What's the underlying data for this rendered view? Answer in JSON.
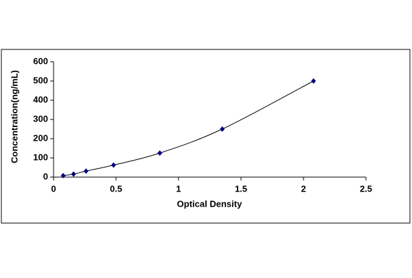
{
  "chart_data": {
    "type": "scatter",
    "x_label": "Optical Density",
    "y_label": "Concentration(ng/mL)",
    "series": [
      {
        "color": "#000080",
        "x": [
          0.077,
          0.16,
          0.26,
          0.48,
          0.85,
          1.35,
          2.08
        ],
        "values": [
          7.8,
          15.6,
          31.25,
          62.5,
          125,
          250,
          500
        ]
      }
    ],
    "xlim": [
      0,
      2.5
    ],
    "xticks": [
      0,
      0.5,
      1,
      1.5,
      2,
      2.5
    ],
    "ylim": [
      0,
      600
    ],
    "yticks": [
      0,
      100,
      200,
      300,
      400,
      500,
      600
    ],
    "grid": false,
    "trendline": true
  }
}
